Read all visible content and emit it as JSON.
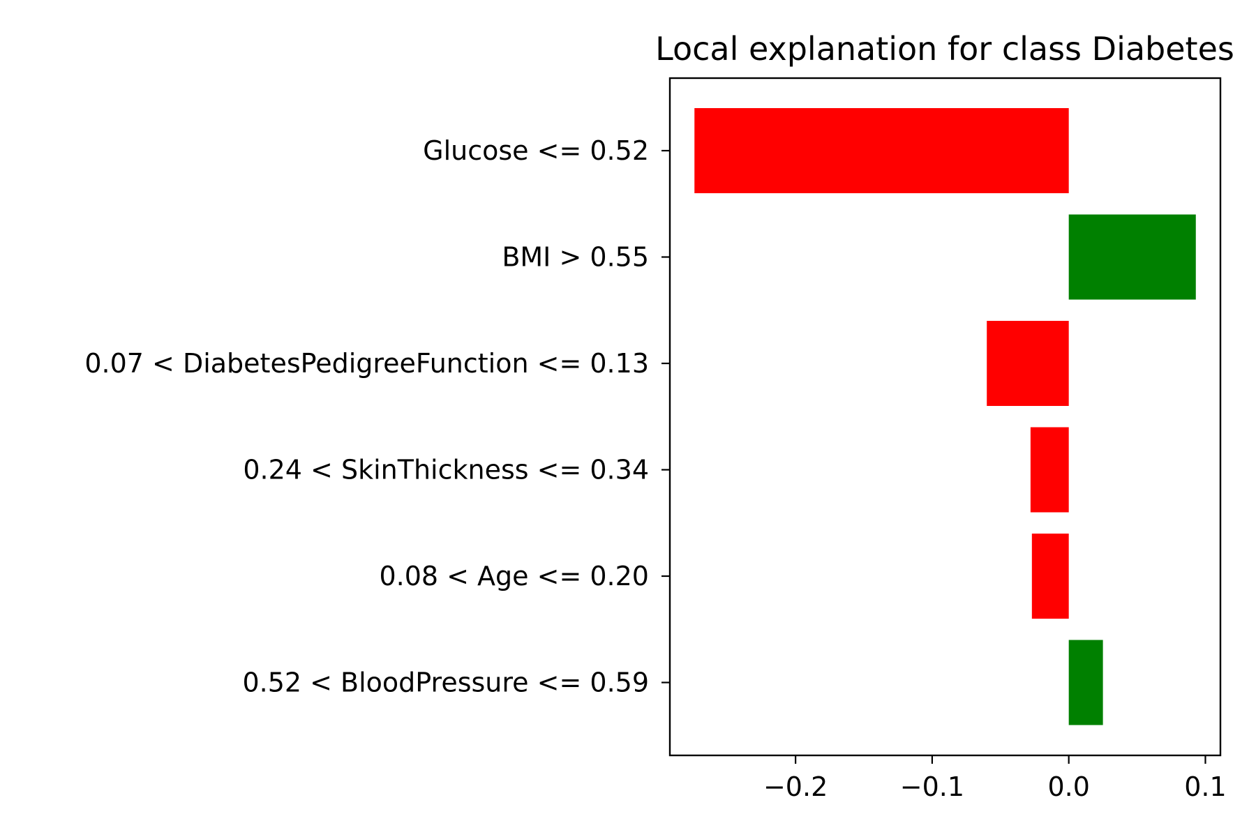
{
  "chart_data": {
    "type": "bar",
    "orientation": "horizontal",
    "title": "Local explanation for class Diabetes",
    "xlabel": "",
    "ylabel": "",
    "categories": [
      "Glucose <= 0.52",
      "BMI > 0.55",
      "0.07 < DiabetesPedigreeFunction <= 0.13",
      "0.24 < SkinThickness <= 0.34",
      "0.08 < Age <= 0.20",
      "0.52 < BloodPressure <= 0.59"
    ],
    "values": [
      -0.274,
      0.093,
      -0.06,
      -0.028,
      -0.027,
      0.025
    ],
    "xlim": [
      -0.292,
      0.111
    ],
    "xticks": [
      -0.2,
      -0.1,
      0.0,
      0.1
    ],
    "xtick_labels": [
      "−0.2",
      "−0.1",
      "0.0",
      "0.1"
    ],
    "grid": false,
    "colors": {
      "positive": "#008000",
      "negative": "#ff0000"
    }
  }
}
